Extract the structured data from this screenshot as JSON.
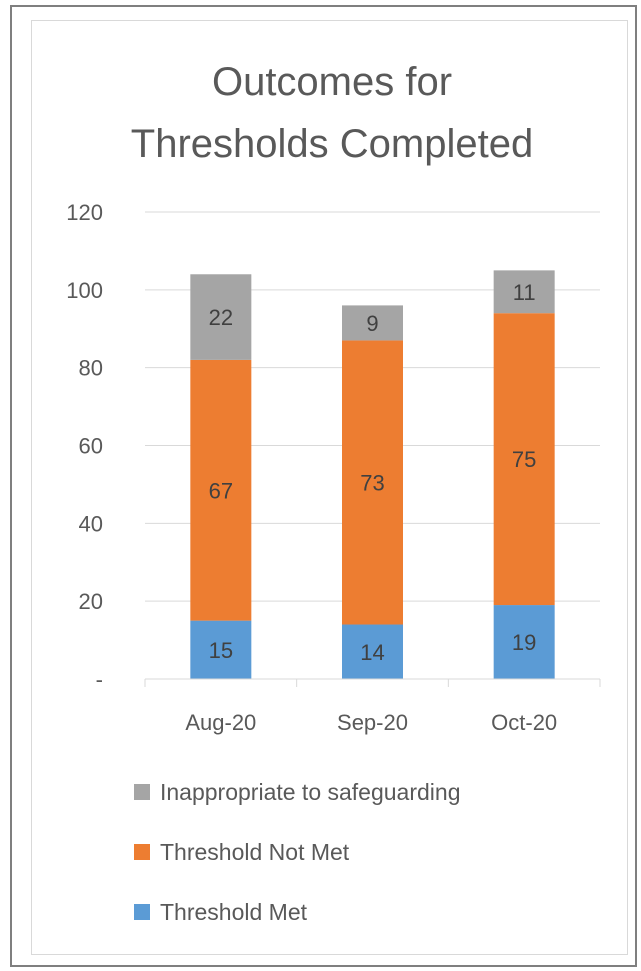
{
  "chart_data": {
    "type": "bar",
    "stacked": true,
    "title": [
      "Outcomes for",
      "Thresholds Completed"
    ],
    "categories": [
      "Aug-20",
      "Sep-20",
      "Oct-20"
    ],
    "series": [
      {
        "name": "Threshold Met",
        "values": [
          15,
          14,
          19
        ],
        "color": "#5b9bd5"
      },
      {
        "name": "Threshold Not Met",
        "values": [
          67,
          73,
          75
        ],
        "color": "#ed7d31"
      },
      {
        "name": "Inappropriate to safeguarding",
        "values": [
          22,
          9,
          11
        ],
        "color": "#a5a5a5"
      }
    ],
    "ylim": [
      0,
      120
    ],
    "yticks": [
      0,
      20,
      40,
      60,
      80,
      100,
      120
    ],
    "ytick_labels": [
      "-",
      "20",
      "40",
      "60",
      "80",
      "100",
      "120"
    ],
    "grid": true,
    "legend_position": "bottom",
    "legend_order": [
      "Inappropriate to safeguarding",
      "Threshold Not Met",
      "Threshold Met"
    ]
  }
}
